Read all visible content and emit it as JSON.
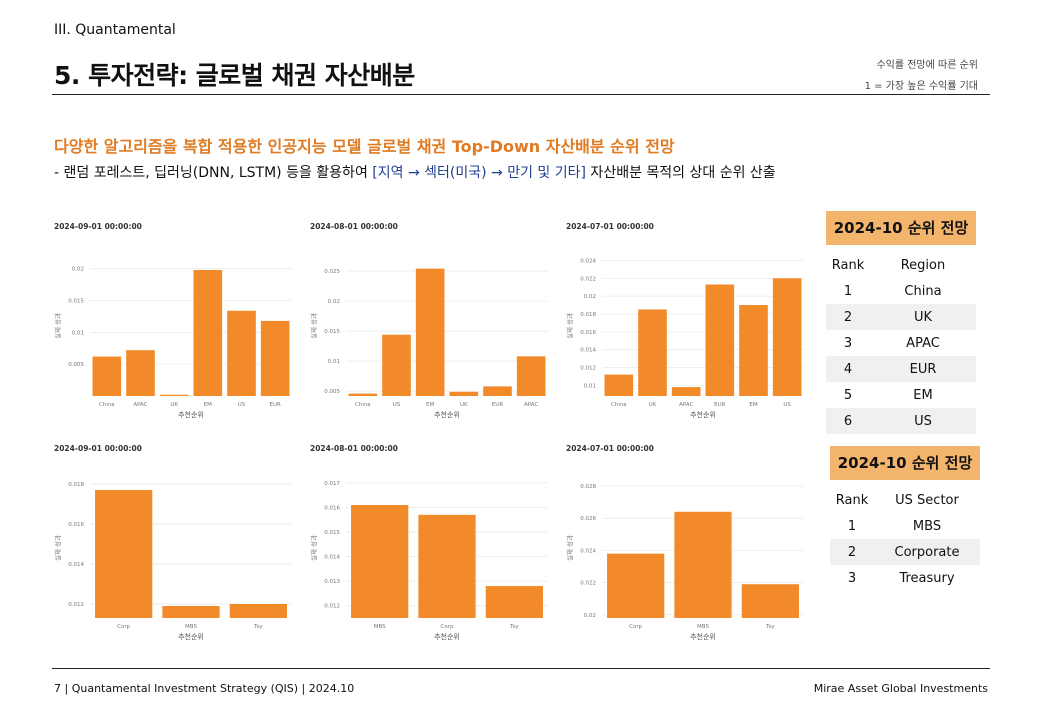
{
  "header": {
    "section": "III. Quantamental",
    "title": "5. 투자전략: 글로벌 채권 자산배분",
    "note_line1": "수익률 전망에 따른 순위",
    "note_line2": "1 = 가장 높은 수익률 기대"
  },
  "subtitle": "다양한 알고리즘을 복합 적용한 인공지능 모델 글로벌 채권 Top-Down 자산배분 순위 전망",
  "description": {
    "prefix": "-  랜덤 포레스트, 딥러닝(DNN, LSTM) 등을 활용하여 ",
    "highlight": "[지역 → 섹터(미국) → 만기 및 기타]",
    "suffix": " 자산배분 목적의 상대 순위 산출"
  },
  "colors": {
    "bar": "#f28a2a",
    "accent_text": "#e07b23",
    "panel_header": "#f2b56b"
  },
  "chart_data": [
    {
      "type": "bar",
      "title": "2024-09-01 00:00:00",
      "xlabel": "추천순위",
      "ylabel": "실제 성과",
      "categories": [
        "China",
        "APAC",
        "UK",
        "EM",
        "US",
        "EUR"
      ],
      "values": [
        0.0062,
        0.0072,
        0.0002,
        0.0198,
        0.0134,
        0.0118
      ],
      "ylim": [
        0,
        0.022
      ],
      "yticks": [
        0.005,
        0.01,
        0.015,
        0.02
      ],
      "ytick_labels": [
        "0.005",
        "0.01",
        "0.015",
        "0.02"
      ]
    },
    {
      "type": "bar",
      "title": "2024-08-01 00:00:00",
      "xlabel": "추천순위",
      "ylabel": "실제 성과",
      "categories": [
        "China",
        "US",
        "EM",
        "UK",
        "EUR",
        "APAC"
      ],
      "values": [
        0.0046,
        0.0144,
        0.0254,
        0.0049,
        0.0058,
        0.0108
      ],
      "ylim": [
        0.0042,
        0.0275
      ],
      "yticks": [
        0.005,
        0.01,
        0.015,
        0.02,
        0.025
      ],
      "ytick_labels": [
        "0.005",
        "0.01",
        "0.015",
        "0.02",
        "0.025"
      ]
    },
    {
      "type": "bar",
      "title": "2024-07-01 00:00:00",
      "xlabel": "추천순위",
      "ylabel": "실제 성과",
      "categories": [
        "China",
        "UK",
        "APAC",
        "EUR",
        "EM",
        "US"
      ],
      "values": [
        0.0112,
        0.0185,
        0.0098,
        0.0213,
        0.019,
        0.022
      ],
      "ylim": [
        0.0088,
        0.0245
      ],
      "yticks": [
        0.01,
        0.012,
        0.014,
        0.016,
        0.018,
        0.02,
        0.022,
        0.024
      ],
      "ytick_labels": [
        "0.01",
        "0.012",
        "0.014",
        "0.016",
        "0.018",
        "0.02",
        "0.022",
        "0.024"
      ]
    },
    {
      "type": "bar",
      "title": "2024-09-01 00:00:00",
      "xlabel": "추천순위",
      "ylabel": "실제 성과",
      "categories": [
        "Corp",
        "MBS",
        "Tsy"
      ],
      "values": [
        0.0177,
        0.0119,
        0.012
      ],
      "ylim": [
        0.0113,
        0.0183
      ],
      "yticks": [
        0.012,
        0.014,
        0.016,
        0.018
      ],
      "ytick_labels": [
        "0.012",
        "0.014",
        "0.016",
        "0.018"
      ]
    },
    {
      "type": "bar",
      "title": "2024-08-01 00:00:00",
      "xlabel": "추천순위",
      "ylabel": "실제 성과",
      "categories": [
        "MBS",
        "Corp",
        "Tsy"
      ],
      "values": [
        0.0161,
        0.0157,
        0.0128
      ],
      "ylim": [
        0.0115,
        0.0172
      ],
      "yticks": [
        0.012,
        0.013,
        0.014,
        0.015,
        0.016,
        0.017
      ],
      "ytick_labels": [
        "0.012",
        "0.013",
        "0.014",
        "0.015",
        "0.016",
        "0.017"
      ]
    },
    {
      "type": "bar",
      "title": "2024-07-01 00:00:00",
      "xlabel": "추천순위",
      "ylabel": "실제 성과",
      "categories": [
        "Corp",
        "MBS",
        "Tsy"
      ],
      "values": [
        0.0238,
        0.0264,
        0.0219
      ],
      "ylim": [
        0.0198,
        0.0285
      ],
      "yticks": [
        0.02,
        0.022,
        0.024,
        0.026,
        0.028
      ],
      "ytick_labels": [
        "0.02",
        "0.022",
        "0.024",
        "0.026",
        "0.028"
      ]
    }
  ],
  "region_panel": {
    "header": "2024-10 순위 전망",
    "col_rank": "Rank",
    "col_name": "Region",
    "rows": [
      {
        "rank": "1",
        "name": "China"
      },
      {
        "rank": "2",
        "name": "UK"
      },
      {
        "rank": "3",
        "name": "APAC"
      },
      {
        "rank": "4",
        "name": "EUR"
      },
      {
        "rank": "5",
        "name": "EM"
      },
      {
        "rank": "6",
        "name": "US"
      }
    ]
  },
  "sector_panel": {
    "header": "2024-10 순위 전망",
    "col_rank": "Rank",
    "col_name": "US Sector",
    "rows": [
      {
        "rank": "1",
        "name": "MBS"
      },
      {
        "rank": "2",
        "name": "Corporate"
      },
      {
        "rank": "3",
        "name": "Treasury"
      }
    ]
  },
  "footer": {
    "left": "7 | Quantamental Investment Strategy (QIS) | 2024.10",
    "right": "Mirae Asset Global Investments"
  }
}
